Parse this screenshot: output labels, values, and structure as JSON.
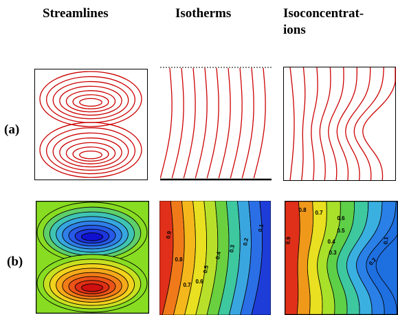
{
  "headers": {
    "streamlines": "Streamlines",
    "isotherms": "Isotherms",
    "isoconcentrations": "Isoconcentrat-\nions"
  },
  "rows": {
    "a": "(a)",
    "b": "(b)"
  },
  "isotherm_labels": [
    "0.9",
    "0.8",
    "0.7",
    "0.6",
    "0.5",
    "0.4",
    "0.3",
    "0.2",
    "0.1"
  ],
  "isoconcentration_labels": [
    "0.9",
    "0.8",
    "0.7",
    "0.6",
    "0.5",
    "0.4",
    "0.3",
    "0.2",
    "0.1"
  ],
  "colors": {
    "line_plot": "#cc0000",
    "contour_line": "#000000",
    "stream_outer": "#88dd22",
    "stream_top_core": "#1010d0",
    "stream_bottom_core": "#d01010"
  }
}
